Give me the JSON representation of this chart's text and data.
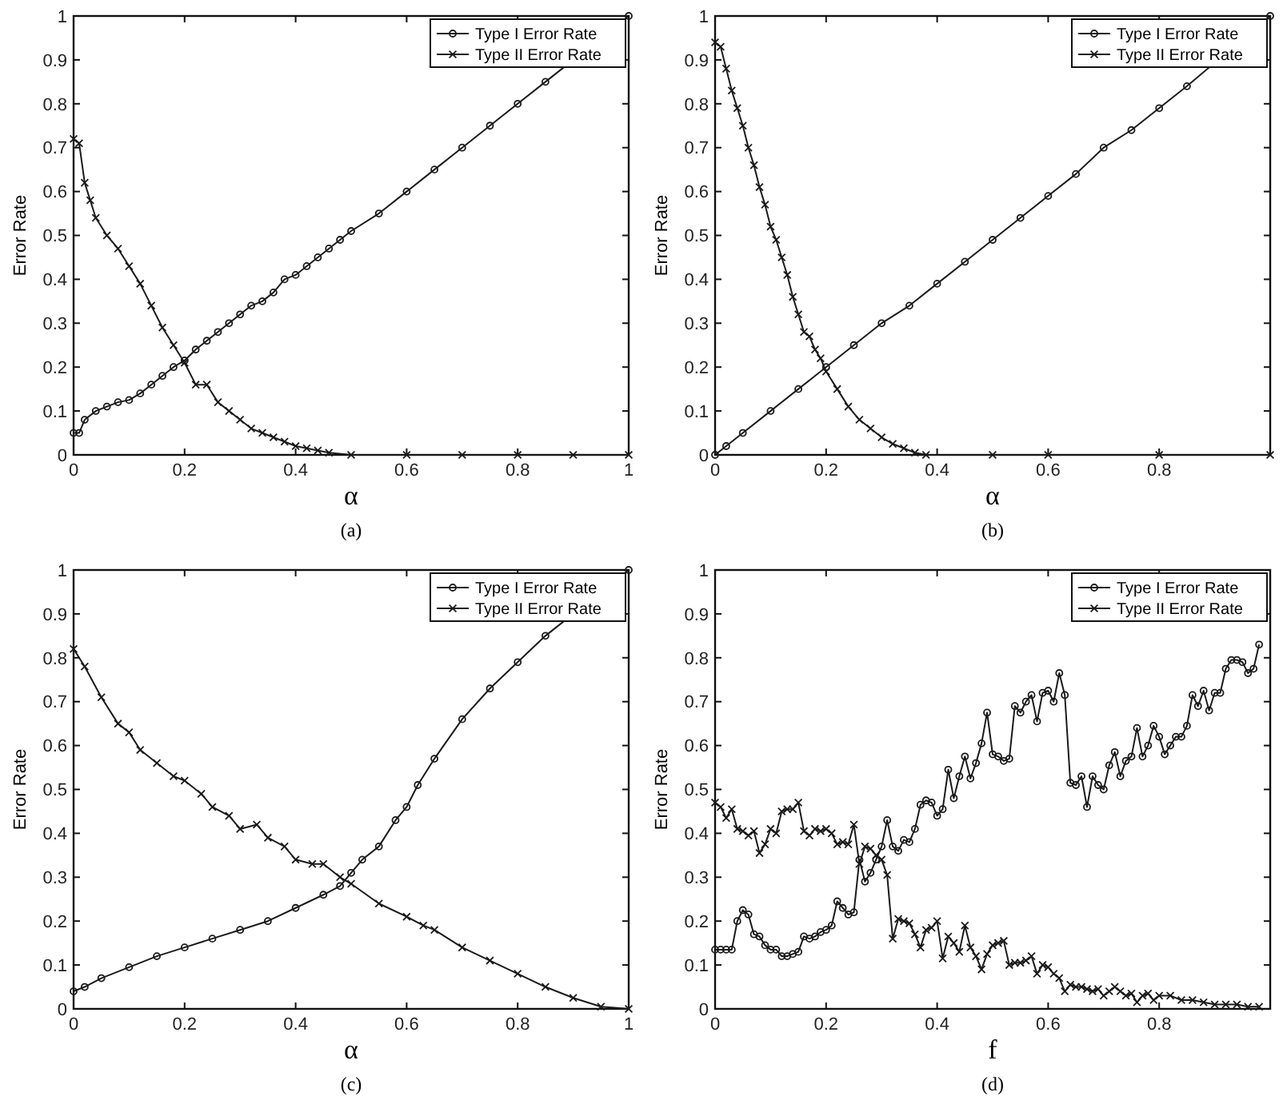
{
  "chart_data": [
    {
      "type": "line",
      "xlabel": "α",
      "ylabel": "Error Rate",
      "annotations": [
        "(a)"
      ],
      "xlim": [
        0,
        1
      ],
      "ylim": [
        0,
        1
      ],
      "xticks": [
        0,
        0.2,
        0.4,
        0.6,
        0.8,
        1
      ],
      "yticks": [
        0,
        0.1,
        0.2,
        0.3,
        0.4,
        0.5,
        0.6,
        0.7,
        0.8,
        0.9,
        1
      ],
      "grid": false,
      "legend": "top right",
      "series": [
        {
          "name": "Type I Error Rate",
          "color": "#1a1a1a",
          "marker": "circle",
          "x": [
            0,
            0.01,
            0.02,
            0.04,
            0.06,
            0.08,
            0.1,
            0.12,
            0.14,
            0.16,
            0.18,
            0.2,
            0.22,
            0.24,
            0.26,
            0.28,
            0.3,
            0.32,
            0.34,
            0.36,
            0.38,
            0.4,
            0.42,
            0.44,
            0.46,
            0.48,
            0.5,
            0.55,
            0.6,
            0.65,
            0.7,
            0.75,
            0.8,
            0.85,
            0.9,
            0.95,
            1
          ],
          "values": [
            0.05,
            0.05,
            0.08,
            0.1,
            0.11,
            0.12,
            0.125,
            0.14,
            0.16,
            0.18,
            0.2,
            0.215,
            0.24,
            0.26,
            0.28,
            0.3,
            0.32,
            0.34,
            0.35,
            0.37,
            0.4,
            0.41,
            0.43,
            0.45,
            0.47,
            0.49,
            0.51,
            0.55,
            0.6,
            0.65,
            0.7,
            0.75,
            0.8,
            0.85,
            null,
            null,
            1
          ]
        },
        {
          "name": "Type II Error Rate",
          "color": "#1a1a1a",
          "marker": "cross",
          "x": [
            0,
            0.01,
            0.02,
            0.03,
            0.04,
            0.06,
            0.08,
            0.1,
            0.12,
            0.14,
            0.16,
            0.18,
            0.2,
            0.22,
            0.24,
            0.26,
            0.28,
            0.3,
            0.32,
            0.34,
            0.36,
            0.38,
            0.4,
            0.42,
            0.44,
            0.46,
            0.5,
            0.6,
            0.7,
            0.8,
            0.9,
            1
          ],
          "values": [
            0.72,
            0.71,
            0.62,
            0.58,
            0.54,
            0.5,
            0.47,
            0.43,
            0.39,
            0.34,
            0.29,
            0.25,
            0.21,
            0.16,
            0.16,
            0.12,
            0.1,
            0.08,
            0.06,
            0.05,
            0.04,
            0.03,
            0.02,
            0.015,
            0.01,
            0.005,
            0,
            0,
            0,
            0,
            0,
            0
          ]
        }
      ]
    },
    {
      "type": "line",
      "xlabel": "α",
      "ylabel": "Error Rate",
      "annotations": [
        "(b)"
      ],
      "xlim": [
        0,
        1
      ],
      "ylim": [
        0,
        1
      ],
      "xticks": [
        0,
        0.2,
        0.4,
        0.6,
        0.8
      ],
      "yticks": [
        0,
        0.1,
        0.2,
        0.3,
        0.4,
        0.5,
        0.6,
        0.7,
        0.8,
        0.9,
        1
      ],
      "grid": false,
      "legend": "top right",
      "series": [
        {
          "name": "Type I Error Rate",
          "color": "#1a1a1a",
          "marker": "circle",
          "x": [
            0,
            0.02,
            0.05,
            0.1,
            0.15,
            0.2,
            0.25,
            0.3,
            0.35,
            0.4,
            0.45,
            0.5,
            0.55,
            0.6,
            0.65,
            0.7,
            0.75,
            0.8,
            0.85,
            0.9,
            0.95,
            1
          ],
          "values": [
            0,
            0.02,
            0.05,
            0.1,
            0.15,
            0.2,
            0.25,
            0.3,
            0.34,
            0.39,
            0.44,
            0.49,
            0.54,
            0.59,
            0.64,
            0.7,
            0.74,
            0.79,
            0.84,
            null,
            null,
            1
          ]
        },
        {
          "name": "Type II Error Rate",
          "color": "#1a1a1a",
          "marker": "cross",
          "x": [
            0,
            0.01,
            0.02,
            0.03,
            0.04,
            0.05,
            0.06,
            0.07,
            0.08,
            0.09,
            0.1,
            0.11,
            0.12,
            0.13,
            0.14,
            0.15,
            0.16,
            0.17,
            0.18,
            0.19,
            0.2,
            0.22,
            0.24,
            0.26,
            0.28,
            0.3,
            0.32,
            0.34,
            0.36,
            0.38,
            0.5,
            0.6,
            0.8,
            1
          ],
          "values": [
            0.94,
            0.93,
            0.88,
            0.83,
            0.79,
            0.75,
            0.7,
            0.66,
            0.61,
            0.57,
            0.52,
            0.49,
            0.45,
            0.41,
            0.36,
            0.32,
            0.28,
            0.27,
            0.24,
            0.22,
            0.19,
            0.15,
            0.11,
            0.08,
            0.06,
            0.04,
            0.025,
            0.015,
            0.005,
            0,
            0,
            0,
            0,
            0
          ]
        }
      ]
    },
    {
      "type": "line",
      "xlabel": "α",
      "ylabel": "Error Rate",
      "annotations": [
        "(c)"
      ],
      "xlim": [
        0,
        1
      ],
      "ylim": [
        0,
        1
      ],
      "xticks": [
        0,
        0.2,
        0.4,
        0.6,
        0.8,
        1
      ],
      "yticks": [
        0,
        0.1,
        0.2,
        0.3,
        0.4,
        0.5,
        0.6,
        0.7,
        0.8,
        0.9,
        1
      ],
      "grid": false,
      "legend": "top right",
      "series": [
        {
          "name": "Type I Error Rate",
          "color": "#1a1a1a",
          "marker": "circle",
          "x": [
            0,
            0.02,
            0.05,
            0.1,
            0.15,
            0.2,
            0.25,
            0.3,
            0.35,
            0.4,
            0.45,
            0.48,
            0.5,
            0.52,
            0.55,
            0.58,
            0.6,
            0.62,
            0.65,
            0.7,
            0.75,
            0.8,
            0.85,
            0.9,
            0.95,
            1
          ],
          "values": [
            0.04,
            0.05,
            0.07,
            0.095,
            0.12,
            0.14,
            0.16,
            0.18,
            0.2,
            0.23,
            0.26,
            0.28,
            0.31,
            0.34,
            0.37,
            0.43,
            0.46,
            0.51,
            0.57,
            0.66,
            0.73,
            0.79,
            0.85,
            null,
            null,
            1
          ]
        },
        {
          "name": "Type II Error Rate",
          "color": "#1a1a1a",
          "marker": "cross",
          "x": [
            0,
            0.02,
            0.05,
            0.08,
            0.1,
            0.12,
            0.15,
            0.18,
            0.2,
            0.23,
            0.25,
            0.28,
            0.3,
            0.33,
            0.35,
            0.38,
            0.4,
            0.43,
            0.45,
            0.48,
            0.5,
            0.55,
            0.6,
            0.63,
            0.65,
            0.7,
            0.75,
            0.8,
            0.85,
            0.9,
            0.95,
            1
          ],
          "values": [
            0.82,
            0.78,
            0.71,
            0.65,
            0.63,
            0.59,
            0.56,
            0.53,
            0.52,
            0.49,
            0.46,
            0.44,
            0.41,
            0.42,
            0.39,
            0.37,
            0.34,
            0.33,
            0.33,
            0.3,
            0.285,
            0.24,
            0.21,
            0.19,
            0.18,
            0.14,
            0.11,
            0.08,
            0.05,
            0.025,
            0.005,
            0
          ]
        }
      ]
    },
    {
      "type": "line",
      "xlabel": "f",
      "ylabel": "Error Rate",
      "annotations": [
        "(d)"
      ],
      "xlim": [
        0,
        1
      ],
      "ylim": [
        0,
        1
      ],
      "xticks": [
        0,
        0.2,
        0.4,
        0.6,
        0.8
      ],
      "yticks": [
        0,
        0.1,
        0.2,
        0.3,
        0.4,
        0.5,
        0.6,
        0.7,
        0.8,
        0.9,
        1
      ],
      "grid": false,
      "legend": "top right",
      "series": [
        {
          "name": "Type I Error Rate",
          "color": "#1a1a1a",
          "marker": "circle",
          "x": [
            0,
            0.01,
            0.02,
            0.03,
            0.04,
            0.05,
            0.06,
            0.07,
            0.08,
            0.09,
            0.1,
            0.11,
            0.12,
            0.13,
            0.14,
            0.15,
            0.16,
            0.17,
            0.18,
            0.19,
            0.2,
            0.21,
            0.22,
            0.23,
            0.24,
            0.25,
            0.26,
            0.27,
            0.28,
            0.29,
            0.3,
            0.31,
            0.32,
            0.33,
            0.34,
            0.35,
            0.36,
            0.37,
            0.38,
            0.39,
            0.4,
            0.41,
            0.42,
            0.43,
            0.44,
            0.45,
            0.46,
            0.47,
            0.48,
            0.49,
            0.5,
            0.51,
            0.52,
            0.53,
            0.54,
            0.55,
            0.56,
            0.57,
            0.58,
            0.59,
            0.6,
            0.61,
            0.62,
            0.63,
            0.64,
            0.65,
            0.66,
            0.67,
            0.68,
            0.69,
            0.7,
            0.71,
            0.72,
            0.73,
            0.74,
            0.75,
            0.76,
            0.77,
            0.78,
            0.79,
            0.8,
            0.81,
            0.82,
            0.83,
            0.84,
            0.85,
            0.86,
            0.87,
            0.88,
            0.89,
            0.9,
            0.91,
            0.92,
            0.93,
            0.94,
            0.95,
            0.96,
            0.97,
            0.98
          ],
          "values": [
            0.135,
            0.135,
            0.135,
            0.135,
            0.2,
            0.225,
            0.215,
            0.17,
            0.165,
            0.145,
            0.135,
            0.135,
            0.12,
            0.12,
            0.125,
            0.13,
            0.165,
            0.16,
            0.165,
            0.175,
            0.18,
            0.19,
            0.245,
            0.23,
            0.215,
            0.22,
            0.34,
            0.29,
            0.31,
            0.34,
            0.37,
            0.43,
            0.37,
            0.36,
            0.385,
            0.38,
            0.41,
            0.465,
            0.475,
            0.47,
            0.44,
            0.455,
            0.545,
            0.48,
            0.53,
            0.575,
            0.525,
            0.56,
            0.605,
            0.675,
            0.58,
            0.575,
            0.565,
            0.57,
            0.69,
            0.675,
            0.7,
            0.715,
            0.655,
            0.72,
            0.725,
            0.7,
            0.765,
            0.715,
            0.515,
            0.51,
            0.53,
            0.46,
            0.53,
            0.51,
            0.5,
            0.555,
            0.585,
            0.53,
            0.565,
            0.575,
            0.64,
            0.575,
            0.6,
            0.645,
            0.62,
            0.58,
            0.6,
            0.62,
            0.62,
            0.645,
            0.715,
            0.69,
            0.725,
            0.68,
            0.72,
            0.72,
            0.775,
            0.795,
            0.795,
            0.79,
            0.765,
            0.775,
            0.83
          ]
        },
        {
          "name": "Type II Error Rate",
          "color": "#1a1a1a",
          "marker": "cross",
          "x": [
            0,
            0.01,
            0.02,
            0.03,
            0.04,
            0.05,
            0.06,
            0.07,
            0.08,
            0.09,
            0.1,
            0.11,
            0.12,
            0.13,
            0.14,
            0.15,
            0.16,
            0.17,
            0.18,
            0.19,
            0.2,
            0.21,
            0.22,
            0.23,
            0.24,
            0.25,
            0.26,
            0.27,
            0.28,
            0.29,
            0.3,
            0.31,
            0.32,
            0.33,
            0.34,
            0.35,
            0.36,
            0.37,
            0.38,
            0.39,
            0.4,
            0.41,
            0.42,
            0.43,
            0.44,
            0.45,
            0.46,
            0.47,
            0.48,
            0.49,
            0.5,
            0.51,
            0.52,
            0.53,
            0.54,
            0.55,
            0.56,
            0.57,
            0.58,
            0.59,
            0.6,
            0.61,
            0.62,
            0.63,
            0.64,
            0.65,
            0.66,
            0.67,
            0.68,
            0.69,
            0.7,
            0.71,
            0.72,
            0.73,
            0.74,
            0.75,
            0.76,
            0.77,
            0.78,
            0.79,
            0.8,
            0.82,
            0.84,
            0.86,
            0.88,
            0.9,
            0.92,
            0.94,
            0.96,
            0.98
          ],
          "values": [
            0.47,
            0.46,
            0.435,
            0.455,
            0.41,
            0.405,
            0.395,
            0.405,
            0.355,
            0.375,
            0.41,
            0.4,
            0.45,
            0.455,
            0.455,
            0.47,
            0.405,
            0.395,
            0.41,
            0.405,
            0.41,
            0.4,
            0.375,
            0.38,
            0.375,
            0.42,
            0.33,
            0.37,
            0.365,
            0.35,
            0.34,
            0.305,
            0.16,
            0.205,
            0.2,
            0.195,
            0.17,
            0.14,
            0.18,
            0.185,
            0.2,
            0.115,
            0.165,
            0.15,
            0.13,
            0.19,
            0.14,
            0.12,
            0.09,
            0.125,
            0.145,
            0.15,
            0.155,
            0.1,
            0.105,
            0.105,
            0.11,
            0.12,
            0.08,
            0.1,
            0.095,
            0.08,
            0.07,
            0.04,
            0.055,
            0.05,
            0.05,
            0.045,
            0.04,
            0.045,
            0.03,
            0.04,
            0.05,
            0.04,
            0.03,
            0.035,
            0.015,
            0.03,
            0.035,
            0.02,
            0.03,
            0.03,
            0.02,
            0.02,
            0.015,
            0.01,
            0.01,
            0.01,
            0.005,
            0.005
          ]
        }
      ]
    }
  ]
}
